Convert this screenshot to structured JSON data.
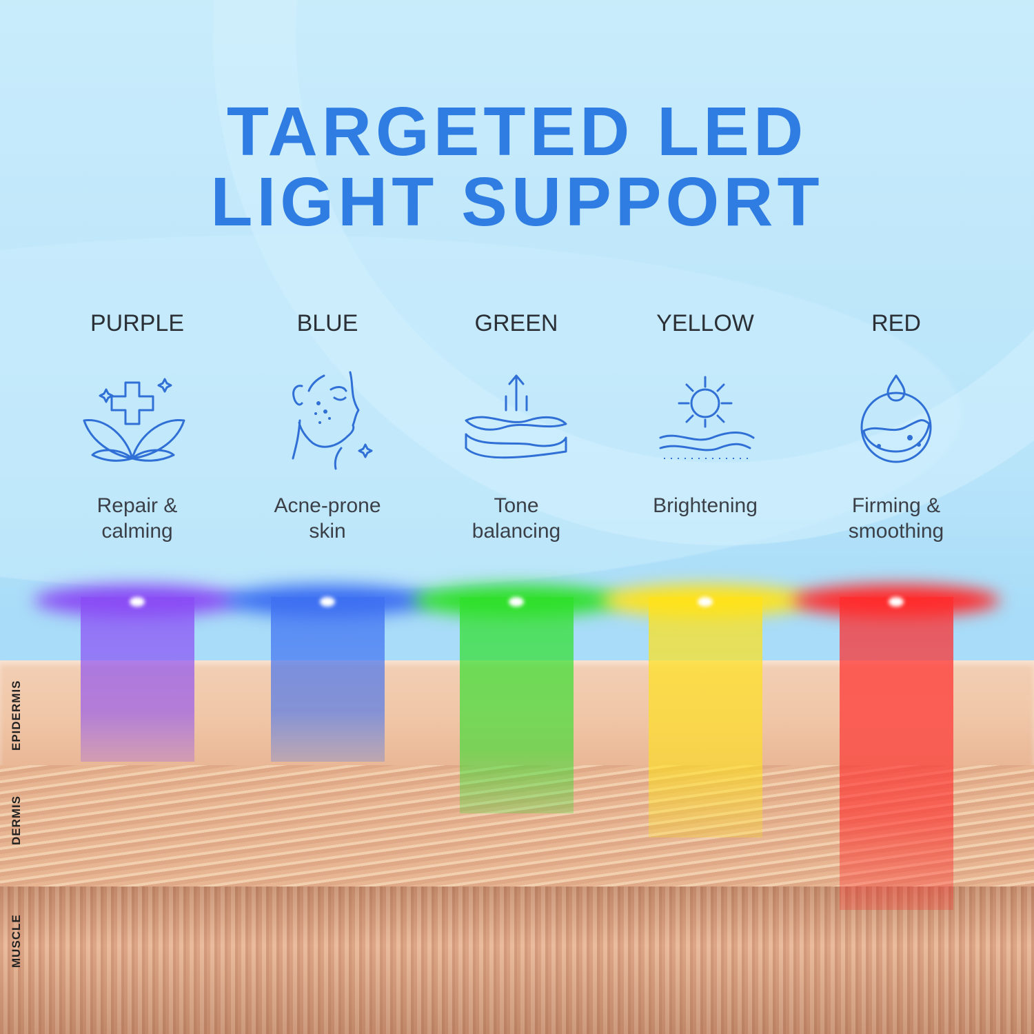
{
  "title": {
    "line1": "TARGETED LED",
    "line2": "LIGHT SUPPORT"
  },
  "lights": [
    {
      "name": "PURPLE",
      "icon": "leaf-cross-icon",
      "desc1": "Repair &",
      "desc2": "calming",
      "color": "#8a4cf5",
      "depth": "epidermis"
    },
    {
      "name": "BLUE",
      "icon": "face-acne-icon",
      "desc1": "Acne-prone",
      "desc2": "skin",
      "color": "#3d6ff2",
      "depth": "epidermis"
    },
    {
      "name": "GREEN",
      "icon": "skin-layers-arrow-icon",
      "desc1": "Tone",
      "desc2": "balancing",
      "color": "#2fe02a",
      "depth": "upper-dermis"
    },
    {
      "name": "YELLOW",
      "icon": "sun-skin-icon",
      "desc1": "Brightening",
      "desc2": "",
      "color": "#ffe21a",
      "depth": "dermis"
    },
    {
      "name": "RED",
      "icon": "water-drop-icon",
      "desc1": "Firming &",
      "desc2": "smoothing",
      "color": "#ff2b2b",
      "depth": "muscle"
    }
  ],
  "layers": {
    "epidermis": "EPIDERMIS",
    "dermis": "DERMIS",
    "muscle": "MUSCLE"
  },
  "accent": "#2f7ce2"
}
